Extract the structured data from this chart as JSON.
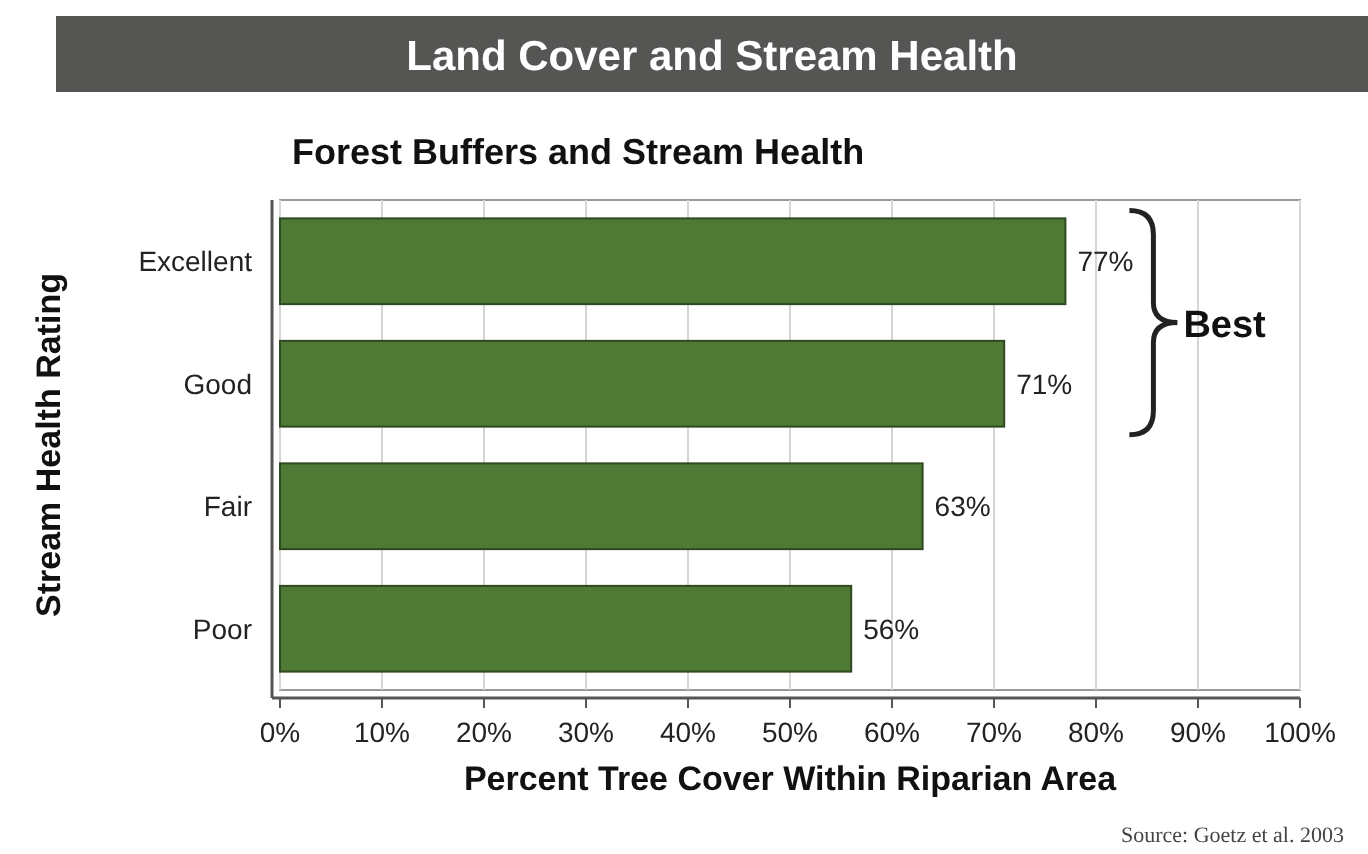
{
  "chart_data": {
    "type": "bar",
    "orientation": "horizontal",
    "title": "Land Cover and Stream Health",
    "subtitle": "Forest Buffers and Stream Health",
    "xlabel": "Percent Tree Cover Within Riparian Area",
    "ylabel": "Stream Health Rating",
    "categories": [
      "Excellent",
      "Good",
      "Fair",
      "Poor"
    ],
    "values": [
      77,
      71,
      63,
      56
    ],
    "value_labels": [
      "77%",
      "71%",
      "63%",
      "56%"
    ],
    "color": "#4f7a36",
    "xlim": [
      0,
      100
    ],
    "xticks": [
      {
        "value": 0,
        "label": "0%"
      },
      {
        "value": 10,
        "label": "10%"
      },
      {
        "value": 20,
        "label": "20%"
      },
      {
        "value": 30,
        "label": "30%"
      },
      {
        "value": 40,
        "label": "40%"
      },
      {
        "value": 50,
        "label": "50%"
      },
      {
        "value": 60,
        "label": "60%"
      },
      {
        "value": 70,
        "label": "70%"
      },
      {
        "value": 80,
        "label": "80%"
      },
      {
        "value": 90,
        "label": "90%"
      },
      {
        "value": 100,
        "label": "100%"
      }
    ],
    "grid": "x",
    "annotations": [
      "Best",
      "Source:  Goetz et al. 2003"
    ]
  }
}
